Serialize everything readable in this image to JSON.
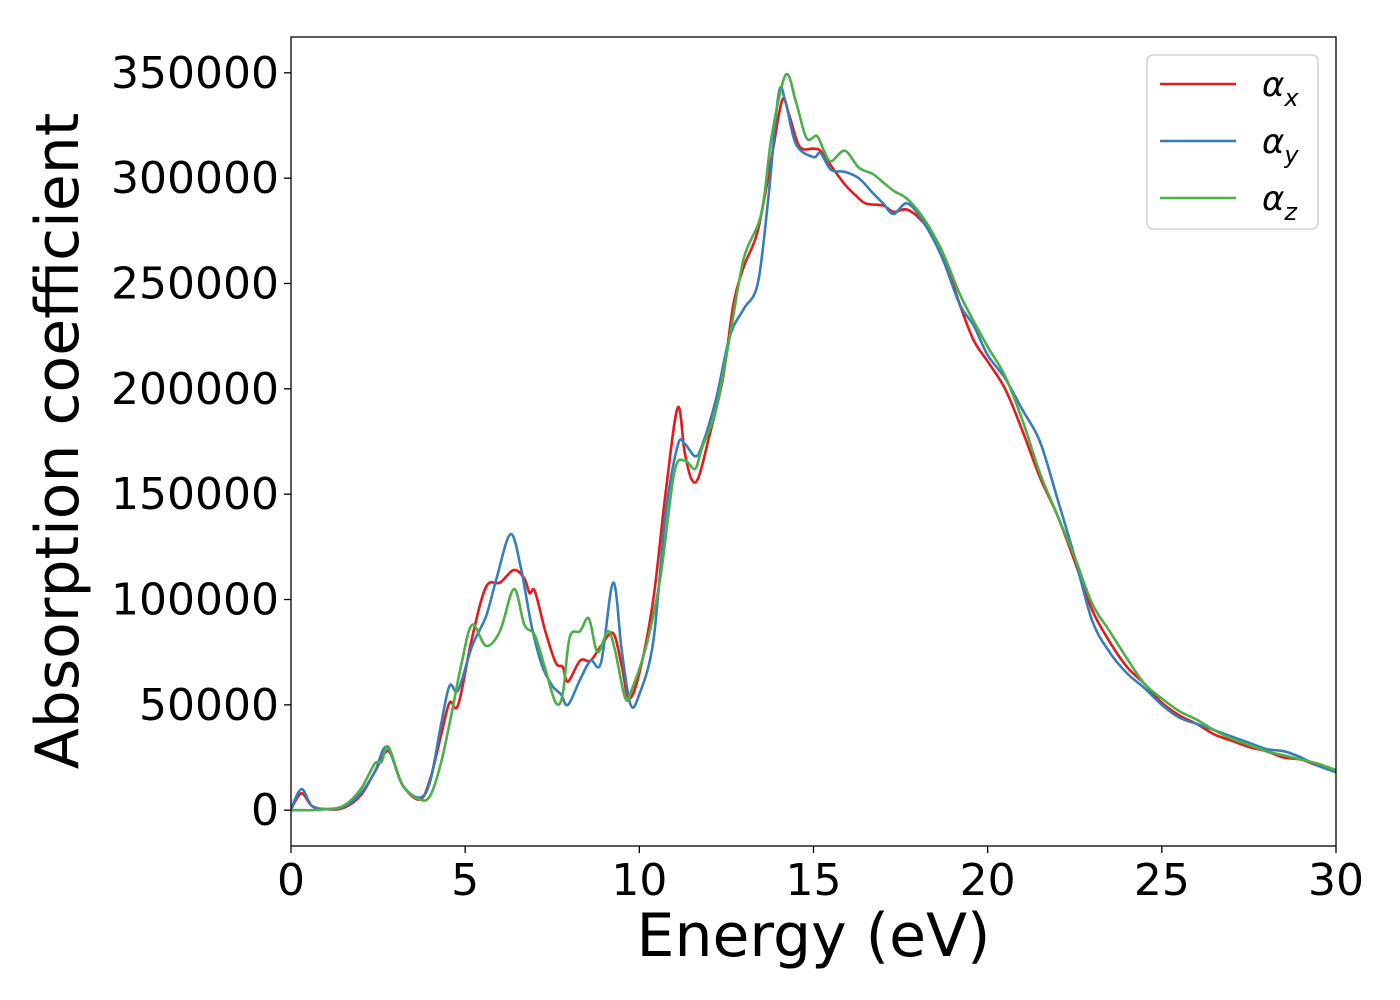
{
  "chart_data": {
    "type": "line",
    "xlabel": "Energy (eV)",
    "ylabel": "Absorption coefficient",
    "xlim": [
      0,
      30
    ],
    "ylim": [
      -17000,
      367000
    ],
    "xticks": [
      0,
      5,
      10,
      15,
      20,
      25,
      30
    ],
    "yticks": [
      0,
      50000,
      100000,
      150000,
      200000,
      250000,
      300000,
      350000
    ],
    "grid": false,
    "legend_position": "top-right",
    "series": [
      {
        "name": "αx",
        "legend_base": "α",
        "legend_sub": "x",
        "color": "#e41a1c",
        "x": [
          0,
          0.3,
          0.6,
          1.0,
          1.5,
          2.0,
          2.4,
          2.8,
          3.2,
          3.7,
          4.0,
          4.3,
          4.55,
          4.8,
          5.2,
          5.6,
          6.0,
          6.4,
          6.7,
          6.85,
          7.0,
          7.3,
          7.6,
          7.8,
          7.95,
          8.3,
          8.6,
          8.9,
          9.25,
          9.5,
          9.7,
          10.0,
          10.4,
          10.75,
          11.1,
          11.3,
          11.5,
          11.7,
          12.0,
          12.4,
          12.7,
          13.0,
          13.4,
          13.8,
          14.1,
          14.3,
          14.6,
          15.0,
          15.2,
          15.5,
          15.9,
          16.2,
          16.5,
          17.0,
          17.3,
          17.7,
          18.2,
          18.7,
          19.2,
          19.6,
          20.0,
          20.5,
          21.0,
          21.5,
          22.0,
          22.5,
          23.0,
          23.5,
          24.0,
          24.5,
          25.0,
          25.5,
          26.0,
          26.5,
          27.0,
          27.5,
          28.0,
          28.5,
          29.0,
          29.5,
          30.0
        ],
        "y": [
          500,
          8000,
          2000,
          500,
          1000,
          7000,
          18000,
          28000,
          12000,
          5000,
          15000,
          35000,
          51000,
          50000,
          82000,
          106000,
          108000,
          114000,
          110000,
          103000,
          104000,
          85000,
          70000,
          68000,
          61000,
          71000,
          71000,
          78000,
          84000,
          68000,
          53000,
          65000,
          100000,
          150000,
          191000,
          170000,
          157000,
          158000,
          177000,
          205000,
          240000,
          258000,
          275000,
          310000,
          337000,
          330000,
          315000,
          314000,
          313000,
          306000,
          297000,
          292000,
          288000,
          287000,
          284000,
          285000,
          278000,
          265000,
          240000,
          223000,
          213000,
          200000,
          180000,
          158000,
          140000,
          118000,
          95000,
          80000,
          68000,
          60000,
          51000,
          45000,
          41000,
          36000,
          33000,
          30000,
          28000,
          25000,
          24000,
          21000,
          19000
        ]
      },
      {
        "name": "αy",
        "legend_base": "α",
        "legend_sub": "y",
        "color": "#377eb8",
        "x": [
          0,
          0.3,
          0.6,
          1.0,
          1.5,
          2.0,
          2.4,
          2.75,
          3.2,
          3.7,
          4.0,
          4.3,
          4.55,
          4.8,
          5.2,
          5.6,
          5.9,
          6.3,
          6.6,
          6.9,
          7.2,
          7.5,
          7.75,
          7.95,
          8.3,
          8.6,
          8.9,
          9.25,
          9.5,
          9.75,
          10.0,
          10.4,
          10.75,
          11.1,
          11.3,
          11.6,
          11.8,
          12.2,
          12.6,
          13.0,
          13.4,
          13.7,
          14.0,
          14.2,
          14.5,
          15.0,
          15.2,
          15.5,
          15.9,
          16.3,
          16.7,
          17.0,
          17.3,
          17.7,
          18.2,
          18.7,
          19.2,
          19.6,
          20.0,
          20.5,
          21.0,
          21.5,
          22.0,
          22.5,
          23.0,
          23.5,
          24.0,
          24.5,
          25.0,
          25.5,
          26.0,
          26.5,
          27.0,
          27.5,
          28.0,
          28.5,
          29.0,
          29.5,
          30.0
        ],
        "y": [
          500,
          10000,
          2000,
          500,
          1500,
          8000,
          18000,
          30000,
          12000,
          6000,
          14000,
          40000,
          59000,
          57000,
          78000,
          92000,
          110000,
          131000,
          115000,
          88000,
          69000,
          59000,
          55000,
          50000,
          62000,
          71000,
          70000,
          108000,
          75000,
          50000,
          55000,
          80000,
          140000,
          173000,
          174000,
          168000,
          173000,
          195000,
          225000,
          238000,
          250000,
          290000,
          340000,
          336000,
          316000,
          310000,
          312000,
          304000,
          303000,
          300000,
          293000,
          288000,
          283000,
          288000,
          278000,
          262000,
          240000,
          230000,
          216000,
          205000,
          190000,
          175000,
          148000,
          120000,
          90000,
          75000,
          65000,
          58000,
          50000,
          44000,
          41000,
          38000,
          35000,
          32000,
          29000,
          28000,
          25000,
          21000,
          18000
        ]
      },
      {
        "name": "αz",
        "legend_base": "α",
        "legend_sub": "z",
        "color": "#4daf4a",
        "x": [
          0,
          0.3,
          0.6,
          1.0,
          1.5,
          2.0,
          2.4,
          2.6,
          2.8,
          3.2,
          3.7,
          4.0,
          4.3,
          4.6,
          4.9,
          5.2,
          5.6,
          6.0,
          6.4,
          6.7,
          7.0,
          7.3,
          7.6,
          7.8,
          8.0,
          8.3,
          8.55,
          8.8,
          9.1,
          9.3,
          9.6,
          9.8,
          10.2,
          10.6,
          11.0,
          11.3,
          11.6,
          11.8,
          12.2,
          12.6,
          13.0,
          13.5,
          13.8,
          14.2,
          14.5,
          14.8,
          15.1,
          15.3,
          15.5,
          15.9,
          16.3,
          16.7,
          17.0,
          17.3,
          17.7,
          18.2,
          18.7,
          19.2,
          19.6,
          20.0,
          20.5,
          21.0,
          21.5,
          22.0,
          22.5,
          23.0,
          23.5,
          24.0,
          24.5,
          25.0,
          25.5,
          26.0,
          26.5,
          27.0,
          27.5,
          28.0,
          28.5,
          29.0,
          29.5,
          30.0
        ],
        "y": [
          0,
          0,
          0,
          500,
          2000,
          10000,
          22000,
          23000,
          30000,
          12000,
          5000,
          7000,
          22000,
          45000,
          70000,
          88000,
          78000,
          85000,
          105000,
          88000,
          83000,
          67000,
          51000,
          55000,
          82000,
          85000,
          91000,
          75000,
          85000,
          76000,
          53000,
          58000,
          78000,
          110000,
          160000,
          166000,
          162000,
          172000,
          190000,
          225000,
          262000,
          283000,
          320000,
          349000,
          336000,
          319000,
          320000,
          313000,
          308000,
          313000,
          305000,
          302000,
          298000,
          294000,
          290000,
          280000,
          265000,
          245000,
          232000,
          220000,
          206000,
          185000,
          160000,
          140000,
          120000,
          98000,
          85000,
          72000,
          60000,
          53000,
          47000,
          43000,
          38000,
          34000,
          31000,
          28000,
          26000,
          24000,
          22000,
          19000
        ]
      }
    ]
  }
}
